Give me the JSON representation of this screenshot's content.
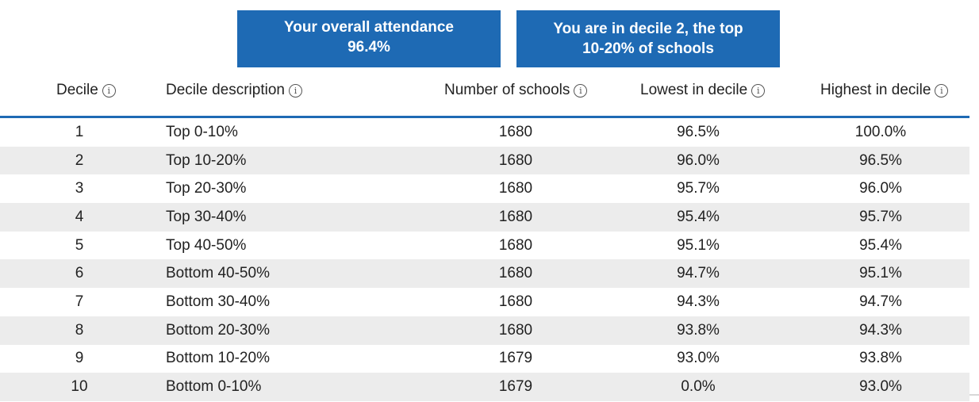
{
  "summary": {
    "attendance_line1": "Your overall attendance",
    "attendance_line2": "96.4%",
    "decile_line1": "You are in decile 2, the top",
    "decile_line2": "10-20% of schools"
  },
  "table": {
    "headers": {
      "decile": "Decile",
      "description": "Decile description",
      "schools": "Number of schools",
      "lowest": "Lowest in decile",
      "highest": "Highest in decile"
    },
    "info_icon_glyph": "i",
    "rows": [
      {
        "decile": "1",
        "description": "Top 0-10%",
        "schools": "1680",
        "lowest": "96.5%",
        "highest": "100.0%"
      },
      {
        "decile": "2",
        "description": "Top 10-20%",
        "schools": "1680",
        "lowest": "96.0%",
        "highest": "96.5%"
      },
      {
        "decile": "3",
        "description": "Top 20-30%",
        "schools": "1680",
        "lowest": "95.7%",
        "highest": "96.0%"
      },
      {
        "decile": "4",
        "description": "Top 30-40%",
        "schools": "1680",
        "lowest": "95.4%",
        "highest": "95.7%"
      },
      {
        "decile": "5",
        "description": "Top 40-50%",
        "schools": "1680",
        "lowest": "95.1%",
        "highest": "95.4%"
      },
      {
        "decile": "6",
        "description": "Bottom 40-50%",
        "schools": "1680",
        "lowest": "94.7%",
        "highest": "95.1%"
      },
      {
        "decile": "7",
        "description": "Bottom 30-40%",
        "schools": "1680",
        "lowest": "94.3%",
        "highest": "94.7%"
      },
      {
        "decile": "8",
        "description": "Bottom 20-30%",
        "schools": "1680",
        "lowest": "93.8%",
        "highest": "94.3%"
      },
      {
        "decile": "9",
        "description": "Bottom 10-20%",
        "schools": "1679",
        "lowest": "93.0%",
        "highest": "93.8%"
      },
      {
        "decile": "10",
        "description": "Bottom 0-10%",
        "schools": "1679",
        "lowest": "0.0%",
        "highest": "93.0%"
      }
    ]
  },
  "colors": {
    "accent": "#1e6ab4",
    "stripe": "#ececec",
    "text": "#222222"
  }
}
